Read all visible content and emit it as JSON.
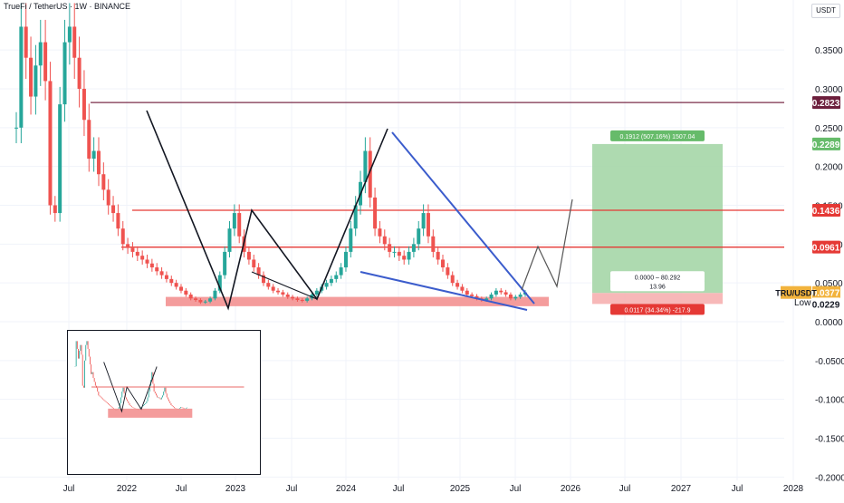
{
  "header": {
    "title": "TrueFi / TetherUS · 1W · BINANCE"
  },
  "axis": {
    "currency_button": "USDT",
    "y_ticks": [
      "0.3500",
      "0.3000",
      "0.2500",
      "0.2000",
      "0.1500",
      "0.1000",
      "0.0500",
      "0.0000",
      "-0.0500",
      "-0.1000",
      "-0.1500",
      "-0.2000"
    ],
    "x_ticks": [
      "Jul",
      "2022",
      "Jul",
      "2023",
      "Jul",
      "2024",
      "Jul",
      "2025",
      "Jul",
      "2026",
      "Jul",
      "2027",
      "Jul",
      "2028"
    ]
  },
  "price_tags": [
    {
      "label": "0.2823",
      "color": "#6d1f3d"
    },
    {
      "label": "0.2289",
      "color": "#66bb6a"
    },
    {
      "label": "0.1436",
      "color": "#e53935"
    },
    {
      "label": "0.0961",
      "color": "#e53935"
    },
    {
      "label": "0.0377",
      "color": "#f2b33d"
    },
    {
      "label": "0.0229",
      "color": "#ffffff"
    }
  ],
  "symbol_tag": "TRU/USDT",
  "low_label": "Low",
  "position": {
    "target_text": "0.1912 (507.16%) 1507.04",
    "entry_text": "0.0000 – 80.292",
    "entry_sub": "13.96",
    "stop_text": "0.0117 (34.34%) -217.9"
  },
  "colors": {
    "up": "#26a69a",
    "down": "#ef5350",
    "resistance": "#e53935",
    "support_zone": "#f28b8b",
    "wedge": "#3b5ccc",
    "target_zone": "#a5d6a7",
    "stop_zone": "#f6b0b0"
  },
  "chart_data": {
    "type": "candlestick",
    "ylim": [
      -0.2,
      0.38
    ],
    "horizontal_levels": [
      0.2823,
      0.1436,
      0.0961
    ],
    "support_zone": [
      0.02,
      0.032
    ],
    "closes": [
      0.25,
      0.38,
      0.34,
      0.29,
      0.33,
      0.36,
      0.31,
      0.15,
      0.14,
      0.28,
      0.36,
      0.38,
      0.34,
      0.3,
      0.26,
      0.21,
      0.22,
      0.19,
      0.17,
      0.15,
      0.14,
      0.12,
      0.1,
      0.095,
      0.09,
      0.085,
      0.08,
      0.075,
      0.07,
      0.065,
      0.06,
      0.055,
      0.05,
      0.045,
      0.04,
      0.035,
      0.03,
      0.028,
      0.025,
      0.026,
      0.03,
      0.04,
      0.06,
      0.09,
      0.12,
      0.14,
      0.11,
      0.09,
      0.08,
      0.07,
      0.06,
      0.05,
      0.045,
      0.04,
      0.038,
      0.035,
      0.032,
      0.03,
      0.028,
      0.027,
      0.03,
      0.035,
      0.04,
      0.045,
      0.05,
      0.055,
      0.06,
      0.07,
      0.09,
      0.12,
      0.15,
      0.18,
      0.22,
      0.16,
      0.12,
      0.11,
      0.1,
      0.09,
      0.09,
      0.085,
      0.08,
      0.09,
      0.1,
      0.12,
      0.14,
      0.11,
      0.09,
      0.08,
      0.07,
      0.06,
      0.05,
      0.045,
      0.04,
      0.035,
      0.033,
      0.03,
      0.028,
      0.03,
      0.035,
      0.04,
      0.038,
      0.035,
      0.03,
      0.032,
      0.035,
      0.0377
    ]
  }
}
